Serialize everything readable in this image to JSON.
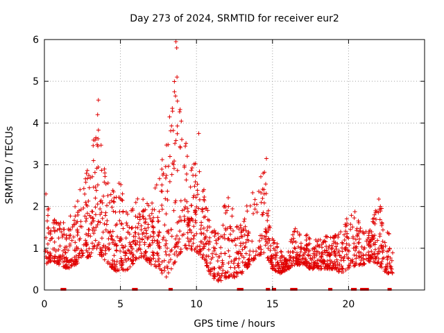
{
  "chart_data": {
    "type": "scatter",
    "title": "Day 273 of 2024, SRMTID for receiver eur2",
    "xlabel": "GPS time / hours",
    "ylabel": "SRMTID / TECUs",
    "xlim": [
      0,
      25
    ],
    "ylim": [
      0,
      6
    ],
    "x_ticks": [
      0,
      5,
      10,
      15,
      20
    ],
    "x_tick_labels": [
      "0",
      "5",
      "10",
      "15",
      "20"
    ],
    "y_ticks": [
      0,
      1,
      2,
      3,
      4,
      5,
      6
    ],
    "y_tick_labels": [
      "0",
      "1",
      "2",
      "3",
      "4",
      "5",
      "6"
    ],
    "grid": true,
    "marker": "+",
    "series_color": "#e00000",
    "axis_color": "#000000",
    "grid_color": "#a0a0a0",
    "data_extent_hours": [
      0,
      22.9
    ],
    "series": [
      {
        "name": "SRMTID",
        "envelope": {
          "x": [
            0.0,
            0.5,
            1.0,
            1.5,
            2.0,
            2.5,
            3.0,
            3.5,
            4.0,
            4.5,
            5.0,
            5.5,
            6.0,
            6.5,
            7.0,
            7.5,
            8.0,
            8.5,
            9.0,
            9.5,
            10.0,
            10.5,
            11.0,
            11.5,
            12.0,
            12.5,
            13.0,
            13.5,
            14.0,
            14.5,
            15.0,
            15.5,
            16.0,
            16.5,
            17.0,
            17.5,
            18.0,
            18.5,
            19.0,
            19.5,
            20.0,
            20.5,
            21.0,
            21.5,
            22.0,
            22.5,
            22.9
          ],
          "low": [
            0.6,
            0.7,
            0.6,
            0.5,
            0.6,
            0.7,
            0.8,
            0.9,
            0.7,
            0.5,
            0.4,
            0.5,
            0.7,
            0.8,
            0.6,
            0.5,
            0.3,
            0.6,
            0.9,
            1.0,
            0.9,
            0.7,
            0.3,
            0.2,
            0.3,
            0.3,
            0.4,
            0.6,
            0.8,
            0.9,
            0.5,
            0.4,
            0.5,
            0.6,
            0.6,
            0.5,
            0.5,
            0.5,
            0.5,
            0.4,
            0.5,
            0.6,
            0.6,
            0.7,
            0.6,
            0.4,
            0.4
          ],
          "high": [
            2.2,
            1.8,
            1.6,
            1.7,
            2.0,
            2.6,
            3.1,
            4.3,
            2.8,
            2.4,
            2.6,
            2.0,
            2.3,
            2.2,
            2.4,
            2.6,
            3.7,
            5.2,
            4.3,
            3.1,
            3.5,
            2.4,
            1.4,
            1.6,
            2.4,
            1.8,
            1.5,
            2.4,
            2.7,
            2.9,
            1.3,
            1.0,
            1.0,
            1.5,
            1.4,
            1.3,
            1.3,
            1.3,
            1.3,
            1.4,
            1.8,
            1.9,
            1.4,
            1.6,
            2.2,
            1.6,
            1.0
          ]
        },
        "outliers": [
          {
            "x": 0.1,
            "y": 2.3
          },
          {
            "x": 3.55,
            "y": 4.55
          },
          {
            "x": 3.5,
            "y": 4.2
          },
          {
            "x": 8.65,
            "y": 5.95
          },
          {
            "x": 8.7,
            "y": 5.8
          },
          {
            "x": 8.72,
            "y": 5.1
          },
          {
            "x": 8.55,
            "y": 4.75
          },
          {
            "x": 10.15,
            "y": 3.75
          },
          {
            "x": 14.6,
            "y": 3.15
          }
        ],
        "zero_markers_x": [
          1.2,
          1.3,
          5.9,
          6.0,
          8.3,
          12.8,
          12.95,
          14.7,
          15.1,
          16.3,
          16.5,
          18.8,
          20.3,
          20.4,
          20.9,
          21.1,
          21.2,
          22.7
        ]
      }
    ]
  }
}
